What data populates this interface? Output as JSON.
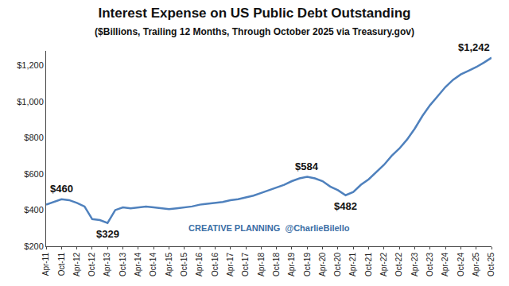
{
  "chart_data": {
    "type": "line",
    "title": "Interest Expense on US Public Debt Outstanding",
    "subtitle": "($Billions, Trailing 12 Months, Through October 2025 via Treasury.gov)",
    "credit": "CREATIVE PLANNING  @CharlieBilello",
    "categories": [
      "Apr-11",
      null,
      "Oct-11",
      null,
      "Apr-12",
      null,
      "Oct-12",
      null,
      "Apr-13",
      null,
      "Oct-13",
      null,
      "Apr-14",
      null,
      "Oct-14",
      null,
      "Apr-15",
      null,
      "Oct-15",
      null,
      "Apr-16",
      null,
      "Oct-16",
      null,
      "Apr-17",
      null,
      "Oct-17",
      null,
      "Apr-18",
      null,
      "Oct-18",
      null,
      "Apr-19",
      null,
      "Oct-19",
      null,
      "Apr-20",
      null,
      "Oct-20",
      null,
      "Apr-21",
      null,
      "Oct-21",
      null,
      "Apr-22",
      null,
      "Oct-22",
      null,
      "Apr-23",
      null,
      "Oct-23",
      null,
      "Apr-24",
      null,
      "Oct-24",
      null,
      "Apr-25",
      null,
      "Oct-25"
    ],
    "values": [
      430,
      445,
      460,
      455,
      440,
      420,
      350,
      345,
      329,
      400,
      415,
      410,
      415,
      420,
      415,
      410,
      405,
      410,
      415,
      420,
      430,
      435,
      440,
      445,
      455,
      460,
      470,
      480,
      495,
      510,
      525,
      540,
      560,
      575,
      584,
      575,
      560,
      530,
      510,
      482,
      500,
      540,
      570,
      610,
      650,
      700,
      740,
      790,
      850,
      920,
      980,
      1030,
      1080,
      1120,
      1150,
      1170,
      1190,
      1215,
      1242
    ],
    "color": "#4f81bd",
    "ylim": [
      200,
      1280
    ],
    "yticks": [
      {
        "value": 200,
        "label": "$200"
      },
      {
        "value": 400,
        "label": "$400"
      },
      {
        "value": 600,
        "label": "$600"
      },
      {
        "value": 800,
        "label": "$800"
      },
      {
        "value": 1000,
        "label": "$1,000"
      },
      {
        "value": 1200,
        "label": "$1,200"
      }
    ],
    "grid": false,
    "annotations": [
      {
        "text": "$460",
        "index": 2
      },
      {
        "text": "$329",
        "index": 8
      },
      {
        "text": "$584",
        "index": 34
      },
      {
        "text": "$482",
        "index": 39
      },
      {
        "text": "$1,242",
        "index": 58
      }
    ]
  }
}
